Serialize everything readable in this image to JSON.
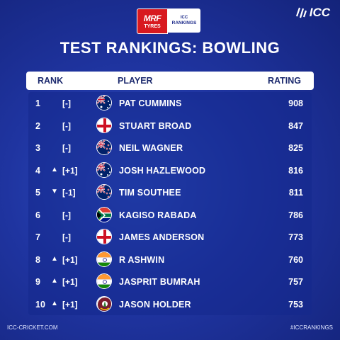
{
  "sponsor": {
    "mrf_line1": "MRF",
    "mrf_line2": "TYRES",
    "icc_line1": "ICC",
    "icc_line2": "RANKINGS"
  },
  "brand": {
    "logo_text": "ICC"
  },
  "title": "TEST RANKINGS: BOWLING",
  "table": {
    "headers": {
      "rank": "RANK",
      "player": "PLAYER",
      "rating": "RATING"
    },
    "rows": [
      {
        "rank": "1",
        "arrow": "",
        "change": "[-]",
        "flag": "australia",
        "player": "PAT CUMMINS",
        "rating": "908"
      },
      {
        "rank": "2",
        "arrow": "",
        "change": "[-]",
        "flag": "england",
        "player": "STUART BROAD",
        "rating": "847"
      },
      {
        "rank": "3",
        "arrow": "",
        "change": "[-]",
        "flag": "new-zealand",
        "player": "NEIL WAGNER",
        "rating": "825"
      },
      {
        "rank": "4",
        "arrow": "▲",
        "change": "[+1]",
        "flag": "australia",
        "player": "JOSH HAZLEWOOD",
        "rating": "816"
      },
      {
        "rank": "5",
        "arrow": "▼",
        "change": "[-1]",
        "flag": "new-zealand",
        "player": "TIM SOUTHEE",
        "rating": "811"
      },
      {
        "rank": "6",
        "arrow": "",
        "change": "[-]",
        "flag": "south-africa",
        "player": "KAGISO RABADA",
        "rating": "786"
      },
      {
        "rank": "7",
        "arrow": "",
        "change": "[-]",
        "flag": "england",
        "player": "JAMES ANDERSON",
        "rating": "773"
      },
      {
        "rank": "8",
        "arrow": "▲",
        "change": "[+1]",
        "flag": "india",
        "player": "R ASHWIN",
        "rating": "760"
      },
      {
        "rank": "9",
        "arrow": "▲",
        "change": "[+1]",
        "flag": "india",
        "player": "JASPRIT BUMRAH",
        "rating": "757"
      },
      {
        "rank": "10",
        "arrow": "▲",
        "change": "[+1]",
        "flag": "west-indies",
        "player": "JASON HOLDER",
        "rating": "753"
      }
    ]
  },
  "footer": {
    "website": "ICC-CRICKET.COM",
    "hashtag": "#ICCRANKINGS"
  },
  "colors": {
    "background": "#1f34a0",
    "header_text": "#1c2a6e",
    "mrf_red": "#d8191f"
  }
}
